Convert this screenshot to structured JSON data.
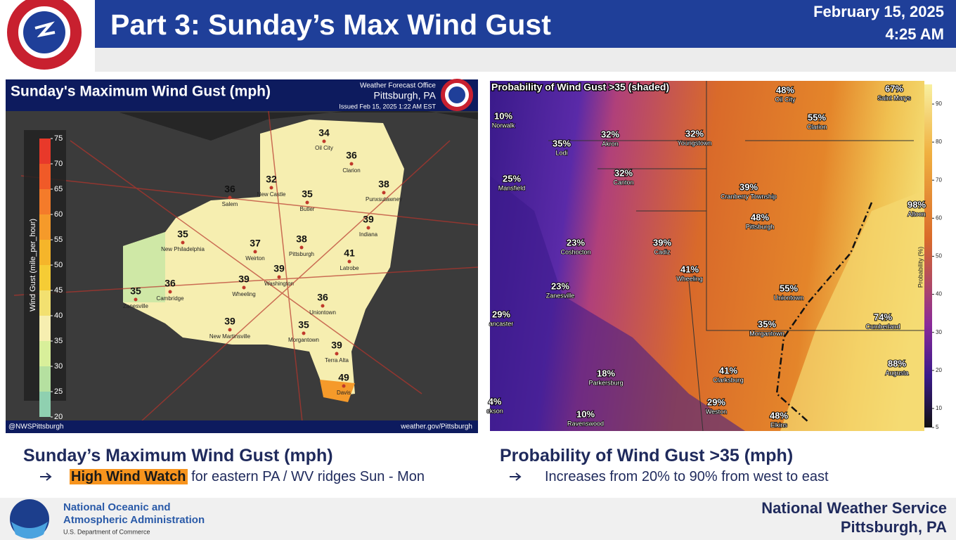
{
  "header": {
    "title": "Part 3: Sunday’s Max Wind Gust",
    "date": "February 15, 2025",
    "time": "4:25 AM"
  },
  "left_map": {
    "title": "Sunday's Maximum Wind Gust (mph)",
    "office": [
      "Weather Forecast Office",
      "Pittsburgh, PA",
      "Issued Feb 15, 2025 1:22 AM EST"
    ],
    "legend_title": "Wind Gust (mile_per_hour)",
    "legend_ticks": [
      75,
      70,
      65,
      60,
      55,
      50,
      45,
      40,
      35,
      30,
      25,
      20
    ],
    "credit_left": "@NWSPittsburgh",
    "credit_right": "weather.gov/Pittsburgh",
    "points": [
      {
        "value": 34,
        "name": "Oil City"
      },
      {
        "value": 36,
        "name": "Clarion"
      },
      {
        "value": 32,
        "name": "New Castle"
      },
      {
        "value": 36,
        "name": "Salem"
      },
      {
        "value": 38,
        "name": "Punxsutawney"
      },
      {
        "value": 35,
        "name": "Butler"
      },
      {
        "value": 39,
        "name": "Indiana"
      },
      {
        "value": 35,
        "name": "New Philadelphia"
      },
      {
        "value": 37,
        "name": "Weirton"
      },
      {
        "value": 38,
        "name": "Pittsburgh"
      },
      {
        "value": 41,
        "name": "Latrobe"
      },
      {
        "value": 39,
        "name": "Washington"
      },
      {
        "value": 36,
        "name": "Cambridge"
      },
      {
        "value": 39,
        "name": "Wheeling"
      },
      {
        "value": 35,
        "name": "Zanesville"
      },
      {
        "value": 36,
        "name": "Uniontown"
      },
      {
        "value": 39,
        "name": "New Martinsville"
      },
      {
        "value": 35,
        "name": "Morgantown"
      },
      {
        "value": 39,
        "name": "Terra Alta"
      },
      {
        "value": 49,
        "name": "Davis"
      }
    ]
  },
  "right_map": {
    "title": "Probability of Wind Gust >35 (shaded)",
    "colorbar_label": "Probability (%)",
    "colorbar_ticks": [
      90,
      80,
      70,
      60,
      50,
      40,
      30,
      20,
      10,
      5
    ],
    "points": [
      {
        "label": "48%",
        "name": "Oil City"
      },
      {
        "label": "67%",
        "name": "Saint Marys"
      },
      {
        "label": "10%",
        "name": "Norwalk"
      },
      {
        "label": "55%",
        "name": "Clarion"
      },
      {
        "label": "35%",
        "name": "Lodi"
      },
      {
        "label": "32%",
        "name": "Akron"
      },
      {
        "label": "32%",
        "name": "Youngstown"
      },
      {
        "label": "25%",
        "name": "Mansfield"
      },
      {
        "label": "32%",
        "name": "Canton"
      },
      {
        "label": "39%",
        "name": "Cranberry Township"
      },
      {
        "label": "48%",
        "name": "Pittsburgh"
      },
      {
        "label": "23%",
        "name": "Coshocton"
      },
      {
        "label": "39%",
        "name": "Cadiz"
      },
      {
        "label": "41%",
        "name": "Wheeling"
      },
      {
        "label": "23%",
        "name": "Zanesville"
      },
      {
        "label": "55%",
        "name": "Uniontown"
      },
      {
        "label": "29%",
        "name": "ancaster"
      },
      {
        "label": "74%",
        "name": "Cumberland"
      },
      {
        "label": "35%",
        "name": "Morgantown"
      },
      {
        "label": "18%",
        "name": "Parkersburg"
      },
      {
        "label": "41%",
        "name": "Clarksburg"
      },
      {
        "label": "88%",
        "name": "Augusta"
      },
      {
        "label": "10%",
        "name": "Ravenswood"
      },
      {
        "label": "29%",
        "name": "Weston"
      },
      {
        "label": "48%",
        "name": "Elkins"
      },
      {
        "label": "4%",
        "name": "ckson"
      },
      {
        "label": "98%",
        "name": "Altoon"
      }
    ]
  },
  "captions": {
    "left": {
      "heading": "Sunday’s Maximum Wind Gust (mph)",
      "highlight": "High Wind Watch",
      "text": "for eastern PA / WV ridges Sun - Mon"
    },
    "right": {
      "heading": "Probability of Wind Gust >35 (mph)",
      "text": "Increases from 20% to 90% from west to east"
    }
  },
  "footer": {
    "noaa": [
      "National Oceanic and",
      "Atmospheric Administration"
    ],
    "commerce": "U.S. Department of Commerce",
    "office": [
      "National Weather Service",
      "Pittsburgh, PA"
    ]
  }
}
